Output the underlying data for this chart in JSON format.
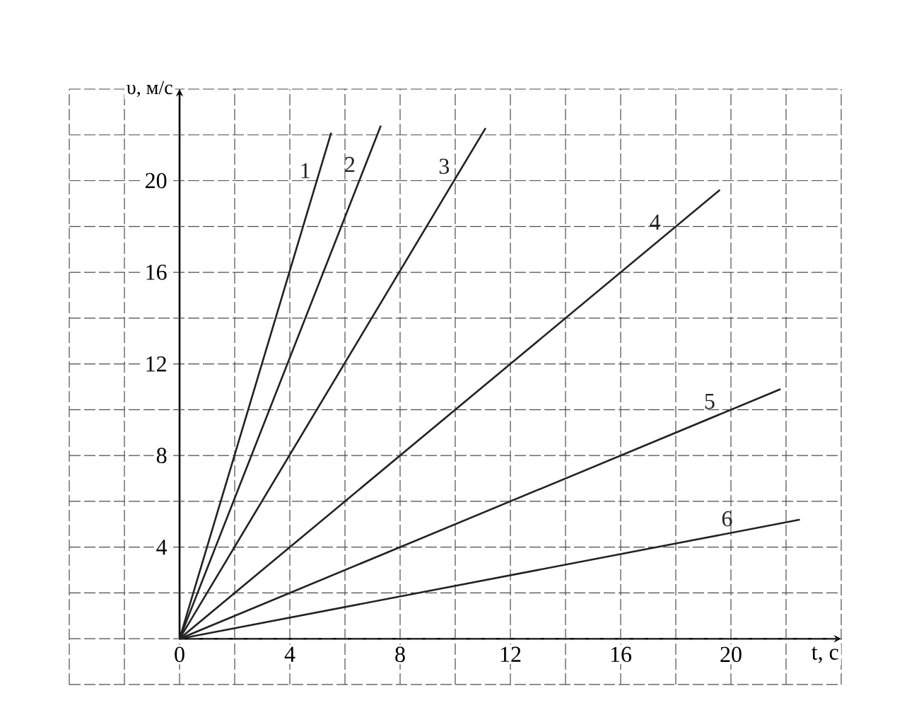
{
  "chart_data": {
    "type": "line",
    "xlabel": "t, с",
    "ylabel": "υ, м/с",
    "xlim": [
      -4,
      24
    ],
    "ylim": [
      -2,
      24
    ],
    "xticks": [
      {
        "value": -4,
        "label": null
      },
      {
        "value": -2,
        "label": null
      },
      0,
      {
        "value": 2,
        "label": null
      },
      4,
      {
        "value": 6,
        "label": null
      },
      8,
      {
        "value": 10,
        "label": null
      },
      12,
      {
        "value": 14,
        "label": null
      },
      16,
      {
        "value": 18,
        "label": null
      },
      20,
      {
        "value": 22,
        "label": null
      },
      {
        "value": 24,
        "label": null
      }
    ],
    "yticks": [
      {
        "value": -2,
        "label": null
      },
      {
        "value": 0,
        "label": null
      },
      {
        "value": 2,
        "label": null
      },
      4,
      {
        "value": 6,
        "label": null
      },
      8,
      {
        "value": 10,
        "label": null
      },
      12,
      {
        "value": 14,
        "label": null
      },
      16,
      {
        "value": 18,
        "label": null
      },
      20,
      {
        "value": 22,
        "label": null
      },
      {
        "value": 24,
        "label": null
      }
    ],
    "grid": true,
    "marker": "none",
    "series": [
      {
        "name": "1",
        "color": "#222222",
        "x": [
          0,
          5.5
        ],
        "values": [
          0,
          22.1
        ]
      },
      {
        "name": "2",
        "color": "#222222",
        "x": [
          0,
          7.3
        ],
        "values": [
          0,
          22.4
        ]
      },
      {
        "name": "3",
        "color": "#222222",
        "x": [
          0,
          11.1
        ],
        "values": [
          0,
          22.3
        ]
      },
      {
        "name": "4",
        "color": "#222222",
        "x": [
          0,
          19.6
        ],
        "values": [
          0,
          19.6
        ]
      },
      {
        "name": "5",
        "color": "#222222",
        "x": [
          0,
          21.8
        ],
        "values": [
          0,
          10.9
        ]
      },
      {
        "name": "6",
        "color": "#222222",
        "x": [
          0,
          22.5
        ],
        "values": [
          0,
          5.2
        ]
      }
    ]
  }
}
